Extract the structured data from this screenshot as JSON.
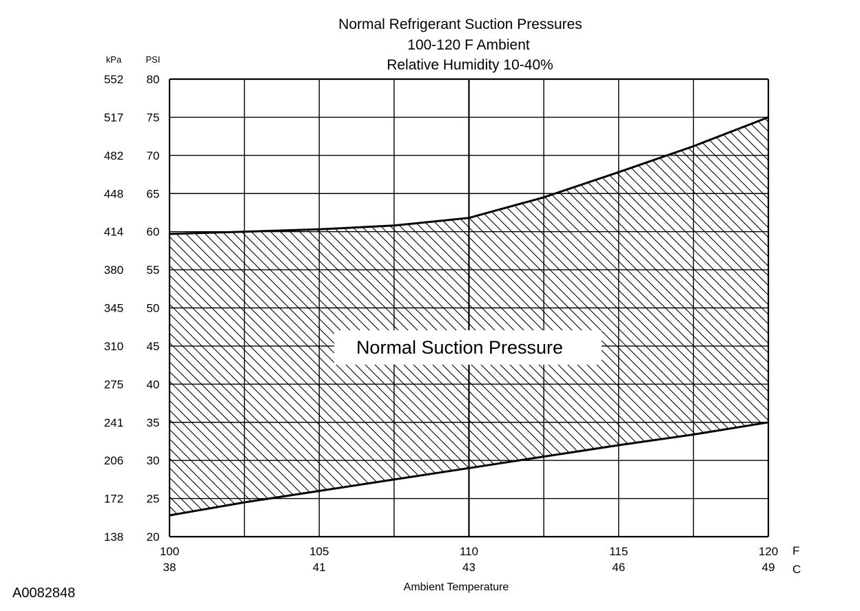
{
  "chart_data": {
    "type": "area",
    "title_lines": [
      "Normal  Refrigerant  Suction  Pressures",
      "100-120 F Ambient",
      "Relative Humidity 10-40%"
    ],
    "y_unit_left": "kPa",
    "y_unit_right": "PSI",
    "xlabel": "Ambient Temperature",
    "x_unit_f": "F",
    "x_unit_c": "C",
    "band_label": "Normal Suction Pressure",
    "figure_id": "A0082848",
    "xlim": [
      100,
      120
    ],
    "ylim": [
      20,
      80
    ],
    "x_ticks_f": [
      "100",
      "105",
      "110",
      "115",
      "120"
    ],
    "x_ticks_c": [
      "38",
      "41",
      "43",
      "46",
      "49"
    ],
    "y_ticks_psi": [
      "80",
      "75",
      "70",
      "65",
      "60",
      "55",
      "50",
      "45",
      "40",
      "35",
      "30",
      "25",
      "20"
    ],
    "y_ticks_kpa": [
      "552",
      "517",
      "482",
      "448",
      "414",
      "380",
      "345",
      "310",
      "275",
      "241",
      "206",
      "172",
      "138"
    ],
    "grid": true,
    "upper_bound": {
      "x": [
        100,
        102.5,
        105,
        107.5,
        110,
        112.5,
        115,
        117.5,
        120
      ],
      "y": [
        59.7,
        60,
        60.3,
        60.8,
        61.8,
        64.5,
        67.8,
        71.2,
        75
      ]
    },
    "lower_bound": {
      "x": [
        100,
        102.5,
        105,
        107.5,
        110,
        112.5,
        115,
        117.5,
        120
      ],
      "y": [
        22.8,
        24.5,
        26,
        27.5,
        29,
        30.5,
        32,
        33.4,
        35
      ]
    }
  }
}
